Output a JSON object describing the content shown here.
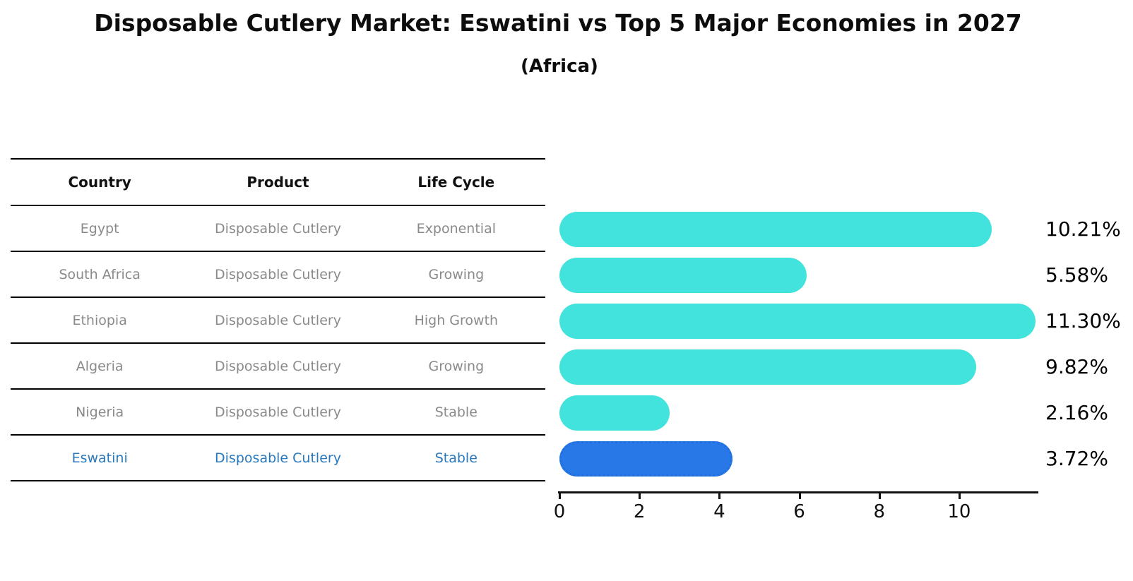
{
  "title": "Disposable Cutlery Market: Eswatini vs Top 5 Major Economies in 2027",
  "subtitle": "(Africa)",
  "table": {
    "headers": [
      "Country",
      "Product",
      "Life Cycle"
    ],
    "rows": [
      {
        "country": "Egypt",
        "product": "Disposable Cutlery",
        "life_cycle": "Exponential",
        "highlight": false
      },
      {
        "country": "South Africa",
        "product": "Disposable Cutlery",
        "life_cycle": "Growing",
        "highlight": false
      },
      {
        "country": "Ethiopia",
        "product": "Disposable Cutlery",
        "life_cycle": "High Growth",
        "highlight": false
      },
      {
        "country": "Algeria",
        "product": "Disposable Cutlery",
        "life_cycle": "Growing",
        "highlight": false
      },
      {
        "country": "Nigeria",
        "product": "Disposable Cutlery",
        "life_cycle": "Stable",
        "highlight": false
      },
      {
        "country": "Eswatini",
        "product": "Disposable Cutlery",
        "life_cycle": "Stable",
        "highlight": true
      }
    ]
  },
  "chart_data": {
    "type": "bar",
    "orientation": "horizontal",
    "categories": [
      "Egypt",
      "South Africa",
      "Ethiopia",
      "Algeria",
      "Nigeria",
      "Eswatini"
    ],
    "values": [
      10.21,
      5.58,
      11.3,
      9.82,
      2.16,
      3.72
    ],
    "value_labels": [
      "10.21%",
      "5.58%",
      "11.30%",
      "9.82%",
      "2.16%",
      "3.72%"
    ],
    "highlight_index": 5,
    "xlim": [
      0,
      11.98
    ],
    "xticks": [
      0,
      2,
      4,
      6,
      8,
      10
    ],
    "grid": false,
    "legend": "none",
    "xlabel": "",
    "ylabel": ""
  },
  "colors": {
    "bar": "#42e3dc",
    "highlight_bar": "#2878e8",
    "highlight_border": "#1f6fe0",
    "highlight_text": "#2878be",
    "table_text": "#8a8a8a",
    "header_text": "#111111",
    "value_text": "#000000",
    "axis": "#111111",
    "background": "#ffffff"
  }
}
